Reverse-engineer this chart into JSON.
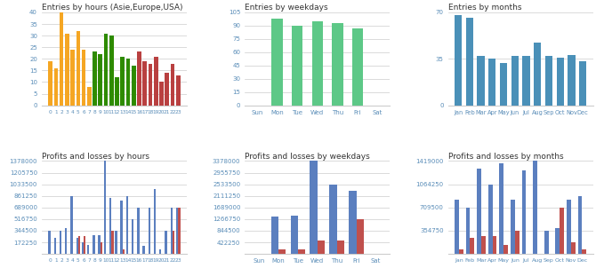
{
  "hours_labels": [
    "0",
    "1",
    "2",
    "3",
    "4",
    "5",
    "6",
    "7",
    "8",
    "9",
    "10",
    "11",
    "12",
    "13",
    "14",
    "15",
    "16",
    "17",
    "18",
    "19",
    "20",
    "21",
    "22",
    "23"
  ],
  "hours_values": [
    19,
    16,
    40,
    31,
    24,
    32,
    24,
    8,
    23,
    22,
    31,
    30,
    12,
    21,
    20,
    17,
    23,
    19,
    18,
    21,
    10,
    14,
    18,
    13
  ],
  "hours_colors": [
    "#F5A623",
    "#F5A623",
    "#F5A623",
    "#F5A623",
    "#F5A623",
    "#F5A623",
    "#F5A623",
    "#F5A623",
    "#2E8B00",
    "#2E8B00",
    "#2E8B00",
    "#2E8B00",
    "#2E8B00",
    "#2E8B00",
    "#2E8B00",
    "#2E8B00",
    "#B94040",
    "#B94040",
    "#B94040",
    "#B94040",
    "#B94040",
    "#B94040",
    "#B94040",
    "#B94040"
  ],
  "hours_title": "Entries by hours (Asie,Europe,USA)",
  "hours_ylim": [
    0,
    40
  ],
  "hours_yticks": [
    0,
    5,
    10,
    15,
    20,
    25,
    30,
    35,
    40
  ],
  "weekdays_labels": [
    "Sun",
    "Mon",
    "Tue",
    "Wed",
    "Thu",
    "Fri",
    "Sat"
  ],
  "weekdays_values": [
    0,
    98,
    90,
    95,
    93,
    87,
    0
  ],
  "weekdays_color": "#5DC887",
  "weekdays_title": "Entries by weekdays",
  "weekdays_ylim": [
    0,
    105
  ],
  "weekdays_yticks": [
    0,
    15,
    30,
    45,
    60,
    75,
    90,
    105
  ],
  "months_labels": [
    "Jan",
    "Feb",
    "Mar",
    "Apr",
    "May",
    "Jun",
    "Jul",
    "Aug",
    "Sep",
    "Oct",
    "Nov",
    "Dec"
  ],
  "months_values": [
    68,
    66,
    37,
    35,
    32,
    37,
    37,
    47,
    37,
    36,
    38,
    33
  ],
  "months_color": "#4A90B8",
  "months_title": "Entries by months",
  "months_ylim": [
    0,
    70
  ],
  "months_yticks": [
    0,
    35,
    70
  ],
  "ph_labels": [
    "0",
    "1",
    "2",
    "3",
    "4",
    "5",
    "6",
    "7",
    "8",
    "9",
    "10",
    "11",
    "12",
    "13",
    "14",
    "15",
    "16",
    "17",
    "18",
    "19",
    "20",
    "21",
    "22",
    "23"
  ],
  "ph_blue": [
    344500,
    241750,
    344250,
    378750,
    861250,
    241750,
    172250,
    137500,
    275000,
    275000,
    1378000,
    826250,
    344500,
    792500,
    861250,
    516750,
    689000,
    120750,
    689000,
    964750,
    68750,
    344500,
    689000,
    689000
  ],
  "ph_red": [
    0,
    0,
    0,
    0,
    0,
    258750,
    258750,
    0,
    0,
    172293,
    0,
    344250,
    0,
    68750,
    0,
    0,
    0,
    0,
    0,
    0,
    0,
    0,
    344250,
    689000
  ],
  "ph_title": "Profits and losses by hours",
  "ph_ylim": [
    0,
    1378000
  ],
  "ph_yticks": [
    172250,
    344500,
    516750,
    689000,
    861250,
    1033500,
    1205750,
    1378000
  ],
  "pw_labels": [
    "Sun",
    "Mon",
    "Tue",
    "Wed",
    "Thu",
    "Fri",
    "Sat"
  ],
  "pw_blue": [
    0,
    1344500,
    1378000,
    3378000,
    2533500,
    2300000,
    0
  ],
  "pw_red": [
    0,
    172250,
    172250,
    500000,
    500000,
    1266750,
    0
  ],
  "pw_title": "Profits and losses by weekdays",
  "pw_ylim": [
    0,
    3378000
  ],
  "pw_yticks": [
    422250,
    844500,
    1266750,
    1689000,
    2111250,
    2533500,
    2955750,
    3378000
  ],
  "pm_labels": [
    "Jan",
    "Feb",
    "Mar",
    "Apr",
    "May",
    "Jun",
    "Jul",
    "Aug",
    "Sep",
    "Oct",
    "Nov",
    "Dec"
  ],
  "pm_blue": [
    826500,
    709500,
    1300000,
    1064250,
    1378000,
    826500,
    1275000,
    1419000,
    354750,
    390000,
    826500,
    880000
  ],
  "pm_red": [
    68750,
    241750,
    275000,
    275000,
    137500,
    354750,
    0,
    0,
    0,
    709500,
    172250,
    68750
  ],
  "pm_title": "Profits and losses by months",
  "pm_ylim": [
    0,
    1419000
  ],
  "pm_yticks": [
    354750,
    709500,
    1064250,
    1419000
  ],
  "title_fontsize": 6.5,
  "tick_fontsize": 5.0,
  "bg_color": "#FFFFFF",
  "grid_color": "#CCCCCC",
  "text_color": "#5A8DB8"
}
